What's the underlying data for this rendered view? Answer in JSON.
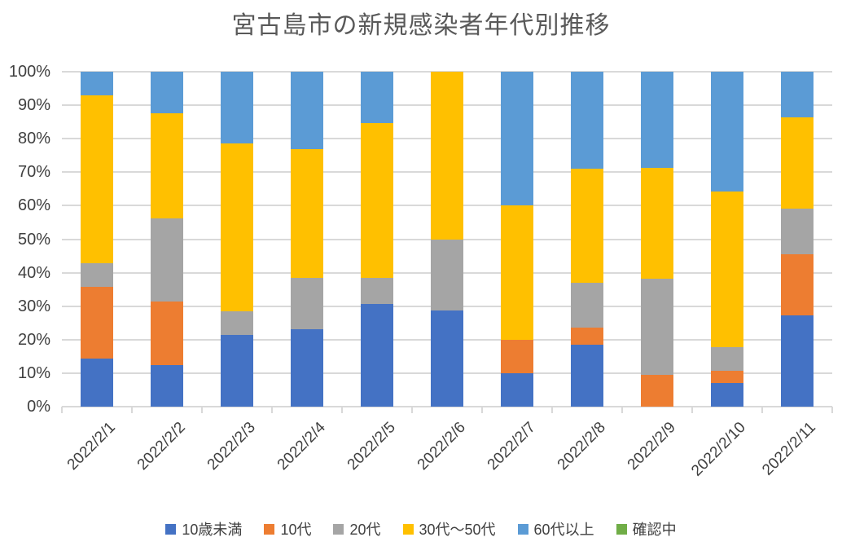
{
  "title": "宮古島市の新規感染者年代別推移",
  "chart_data": {
    "type": "bar",
    "stacked": true,
    "percent_stacked": true,
    "title": "宮古島市の新規感染者年代別推移",
    "categories": [
      "2022/2/1",
      "2022/2/2",
      "2022/2/3",
      "2022/2/4",
      "2022/2/5",
      "2022/2/6",
      "2022/2/7",
      "2022/2/8",
      "2022/2/9",
      "2022/2/10",
      "2022/2/11"
    ],
    "series": [
      {
        "name": "10歳未満",
        "color": "#4472C4",
        "values": [
          14.3,
          12.5,
          21.4,
          23.1,
          30.8,
          28.6,
          10.0,
          18.4,
          0,
          7.1,
          27.3
        ]
      },
      {
        "name": "10代",
        "color": "#ED7D31",
        "values": [
          21.4,
          18.8,
          0,
          0,
          0,
          0,
          10.0,
          5.3,
          9.5,
          3.6,
          18.2
        ]
      },
      {
        "name": "20代",
        "color": "#A5A5A5",
        "values": [
          7.1,
          25.0,
          7.1,
          15.4,
          7.7,
          21.4,
          0,
          13.2,
          28.6,
          7.1,
          13.6
        ]
      },
      {
        "name": "30代～50代",
        "color": "#FFC000",
        "values": [
          50.0,
          31.2,
          50.0,
          38.5,
          46.2,
          50.0,
          40.0,
          34.2,
          33.3,
          46.4,
          27.3
        ]
      },
      {
        "name": "60代以上",
        "color": "#5B9BD5",
        "values": [
          7.1,
          12.5,
          21.4,
          23.1,
          15.4,
          0,
          40.0,
          28.9,
          28.6,
          35.7,
          13.6
        ]
      },
      {
        "name": "確認中",
        "color": "#70AD47",
        "values": [
          0,
          0,
          0,
          0,
          0,
          0,
          0,
          0,
          0,
          0,
          0
        ]
      }
    ],
    "xlabel": "",
    "ylabel": "",
    "ylim": [
      0,
      100
    ],
    "y_ticks": [
      "0%",
      "10%",
      "20%",
      "30%",
      "40%",
      "50%",
      "60%",
      "70%",
      "80%",
      "90%",
      "100%"
    ],
    "grid": true,
    "gridline_color": "#D9D9D9",
    "legend_position": "bottom",
    "title_color": "#595959",
    "axis_label_color": "#404040"
  }
}
